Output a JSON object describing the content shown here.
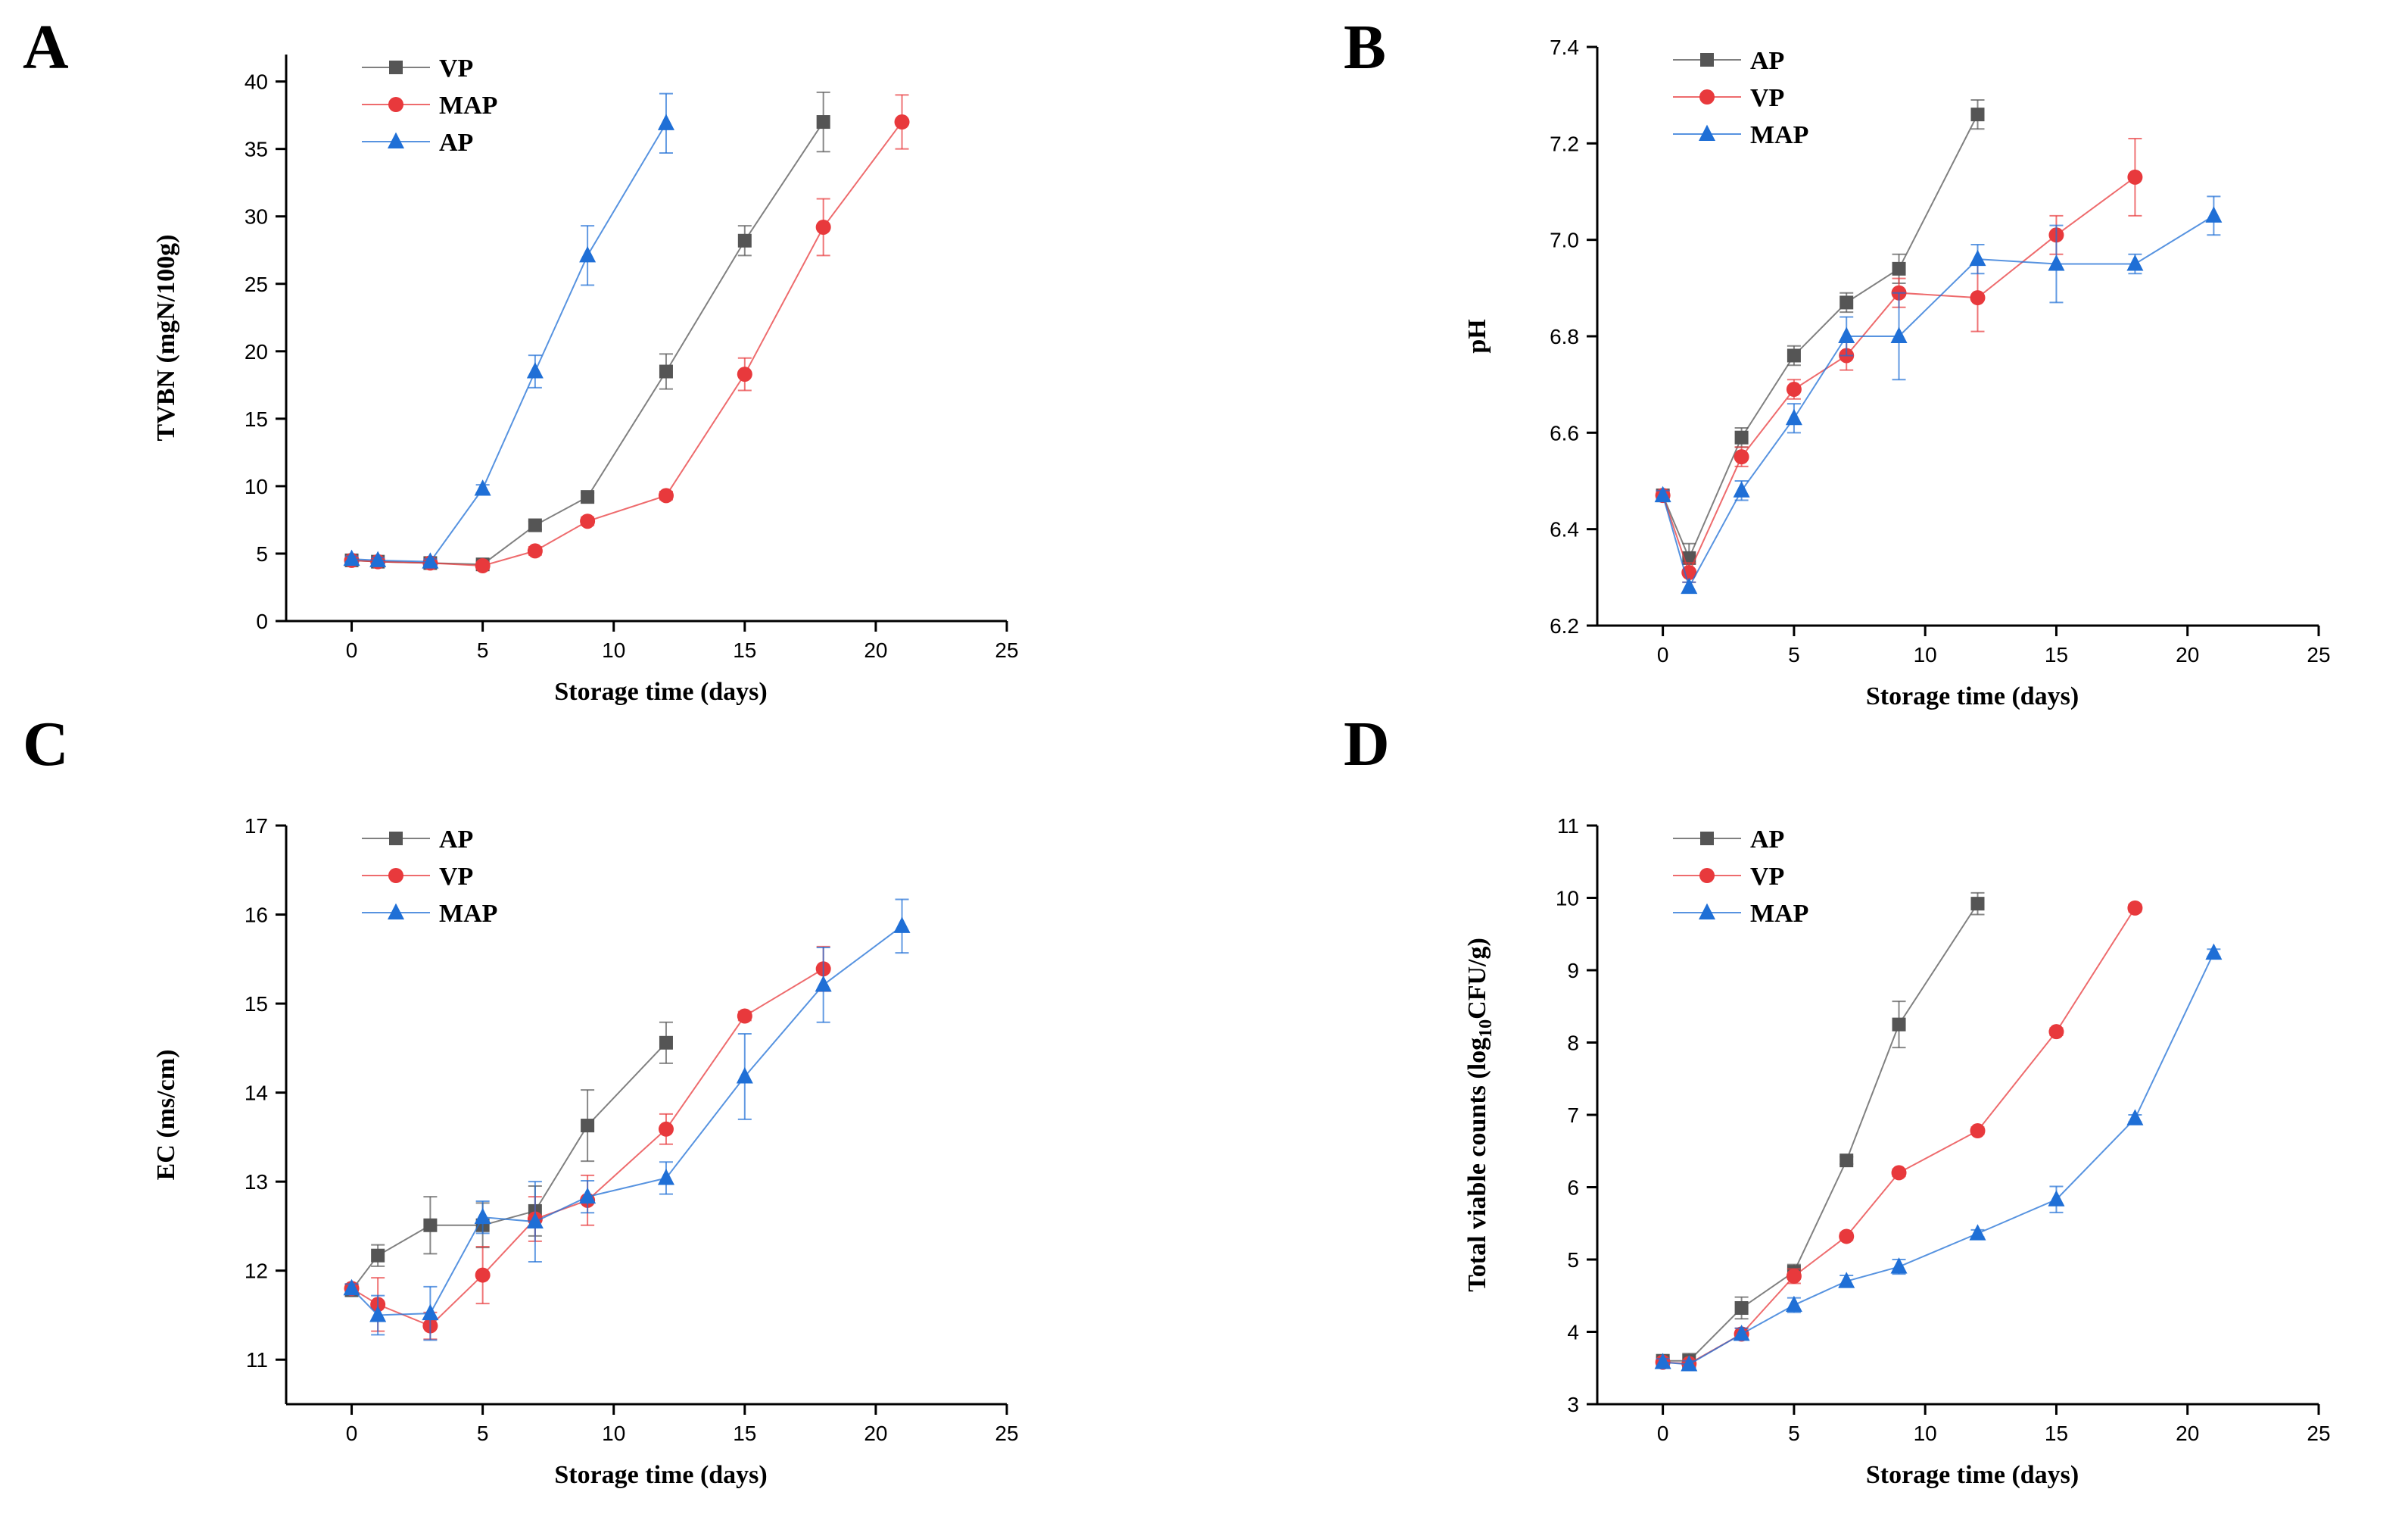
{
  "chart_data": [
    {
      "panel": "A",
      "type": "line",
      "title": "",
      "xlabel": "Storage time (days)",
      "ylabel": "TVBN (mgN/100g)",
      "xlim": [
        -2.5,
        25
      ],
      "ylim": [
        0,
        42
      ],
      "xticks": [
        0,
        5,
        10,
        15,
        20,
        25
      ],
      "yticks": [
        0,
        5,
        10,
        15,
        20,
        25,
        30,
        35,
        40
      ],
      "yprecision": 0,
      "legend_placement": "top-left",
      "series": [
        {
          "name": "VP",
          "color": "#555555",
          "marker": "square",
          "x": [
            0,
            1,
            3,
            5,
            7,
            9,
            12,
            15,
            18
          ],
          "y": [
            4.5,
            4.4,
            4.3,
            4.2,
            7.1,
            9.2,
            18.5,
            28.2,
            37.0
          ],
          "err": [
            0.2,
            0.2,
            0.2,
            0.2,
            0.3,
            0.3,
            1.3,
            1.1,
            2.2
          ]
        },
        {
          "name": "MAP",
          "color": "#e8393c",
          "marker": "circle",
          "x": [
            0,
            1,
            3,
            5,
            7,
            9,
            12,
            15,
            18,
            21
          ],
          "y": [
            4.5,
            4.4,
            4.3,
            4.1,
            5.2,
            7.4,
            9.3,
            18.3,
            29.2,
            37.0
          ],
          "err": [
            0.2,
            0.2,
            0.2,
            0.2,
            0.3,
            0.3,
            0.3,
            1.2,
            2.1,
            2.0
          ]
        },
        {
          "name": "AP",
          "color": "#1f6fd6",
          "marker": "triangle",
          "x": [
            0,
            1,
            3,
            5,
            7,
            9,
            12
          ],
          "y": [
            4.6,
            4.5,
            4.4,
            9.8,
            18.5,
            27.1,
            36.9
          ],
          "err": [
            0.2,
            0.2,
            0.2,
            0.3,
            1.2,
            2.2,
            2.2
          ]
        }
      ]
    },
    {
      "panel": "B",
      "type": "line",
      "title": "",
      "xlabel": "Storage time (days)",
      "ylabel": "pH",
      "xlim": [
        -2.5,
        25
      ],
      "ylim": [
        6.2,
        7.4
      ],
      "xticks": [
        0,
        5,
        10,
        15,
        20,
        25
      ],
      "yticks": [
        6.2,
        6.4,
        6.6,
        6.8,
        7.0,
        7.2,
        7.4
      ],
      "yprecision": 1,
      "legend_placement": "top-left",
      "series": [
        {
          "name": "AP",
          "color": "#555555",
          "marker": "square",
          "x": [
            0,
            1,
            3,
            5,
            7,
            9,
            12
          ],
          "y": [
            6.47,
            6.34,
            6.59,
            6.76,
            6.87,
            6.94,
            7.26
          ],
          "err": [
            0.01,
            0.03,
            0.02,
            0.02,
            0.02,
            0.03,
            0.03
          ]
        },
        {
          "name": "VP",
          "color": "#e8393c",
          "marker": "circle",
          "x": [
            0,
            1,
            3,
            5,
            7,
            9,
            12,
            15,
            18
          ],
          "y": [
            6.47,
            6.31,
            6.55,
            6.69,
            6.76,
            6.89,
            6.88,
            7.01,
            7.13
          ],
          "err": [
            0.01,
            0.02,
            0.02,
            0.02,
            0.03,
            0.03,
            0.07,
            0.04,
            0.08
          ]
        },
        {
          "name": "MAP",
          "color": "#1f6fd6",
          "marker": "triangle",
          "x": [
            0,
            1,
            3,
            5,
            7,
            9,
            12,
            15,
            18,
            21
          ],
          "y": [
            6.47,
            6.28,
            6.48,
            6.63,
            6.8,
            6.8,
            6.96,
            6.95,
            6.95,
            7.05
          ],
          "err": [
            0.01,
            0.01,
            0.02,
            0.03,
            0.04,
            0.09,
            0.03,
            0.08,
            0.02,
            0.04
          ]
        }
      ]
    },
    {
      "panel": "C",
      "type": "line",
      "title": "",
      "xlabel": "Storage time (days)",
      "ylabel": "EC (ms/cm)",
      "xlim": [
        -2.5,
        25
      ],
      "ylim": [
        10.5,
        17
      ],
      "xticks": [
        0,
        5,
        10,
        15,
        20,
        25
      ],
      "yticks": [
        11,
        12,
        13,
        14,
        15,
        16,
        17
      ],
      "yprecision": 0,
      "legend_placement": "top-left",
      "series": [
        {
          "name": "AP",
          "color": "#555555",
          "marker": "square",
          "x": [
            0,
            1,
            3,
            5,
            7,
            9,
            12
          ],
          "y": [
            11.78,
            12.17,
            12.51,
            12.51,
            12.67,
            13.63,
            14.56
          ],
          "err": [
            0.05,
            0.12,
            0.32,
            0.25,
            0.28,
            0.4,
            0.23
          ]
        },
        {
          "name": "VP",
          "color": "#e8393c",
          "marker": "circle",
          "x": [
            0,
            1,
            3,
            5,
            7,
            9,
            12,
            15,
            18
          ],
          "y": [
            11.8,
            11.62,
            11.38,
            11.95,
            12.58,
            12.79,
            13.59,
            14.86,
            15.39
          ],
          "err": [
            0.05,
            0.3,
            0.15,
            0.32,
            0.25,
            0.28,
            0.17,
            0.05,
            0.25
          ]
        },
        {
          "name": "MAP",
          "color": "#1f6fd6",
          "marker": "triangle",
          "x": [
            0,
            1,
            3,
            5,
            7,
            9,
            12,
            15,
            18,
            21
          ],
          "y": [
            11.8,
            11.5,
            11.52,
            12.6,
            12.55,
            12.83,
            13.04,
            14.18,
            15.21,
            15.87
          ],
          "err": [
            0.05,
            0.22,
            0.3,
            0.18,
            0.45,
            0.18,
            0.18,
            0.48,
            0.42,
            0.3
          ]
        }
      ]
    },
    {
      "panel": "D",
      "type": "line",
      "title": "",
      "xlabel": "Storage time (days)",
      "ylabel": "Total viable counts (log",
      "ylabel_sub": "10",
      "ylabel_tail": "CFU/g)",
      "xlim": [
        -2.5,
        25
      ],
      "ylim": [
        3,
        11
      ],
      "xticks": [
        0,
        5,
        10,
        15,
        20,
        25
      ],
      "yticks": [
        3,
        4,
        5,
        6,
        7,
        8,
        9,
        10,
        11
      ],
      "yprecision": 0,
      "legend_placement": "top-left",
      "series": [
        {
          "name": "AP",
          "color": "#555555",
          "marker": "square",
          "x": [
            0,
            1,
            3,
            5,
            7,
            9,
            12
          ],
          "y": [
            3.6,
            3.6,
            4.33,
            4.83,
            6.37,
            8.25,
            9.92
          ],
          "err": [
            0.05,
            0.1,
            0.15,
            0.1,
            0.05,
            0.32,
            0.15
          ]
        },
        {
          "name": "VP",
          "color": "#e8393c",
          "marker": "circle",
          "x": [
            0,
            1,
            3,
            5,
            7,
            9,
            12,
            15,
            18
          ],
          "y": [
            3.58,
            3.56,
            3.97,
            4.77,
            5.32,
            6.2,
            6.78,
            8.15,
            9.86
          ],
          "err": [
            0.05,
            0.05,
            0.08,
            0.1,
            0.05,
            0.05,
            0.05,
            0.05,
            0.05
          ]
        },
        {
          "name": "MAP",
          "color": "#1f6fd6",
          "marker": "triangle",
          "x": [
            0,
            1,
            3,
            5,
            7,
            9,
            12,
            15,
            18,
            21
          ],
          "y": [
            3.58,
            3.55,
            3.97,
            4.37,
            4.7,
            4.9,
            5.36,
            5.83,
            6.95,
            9.24
          ],
          "err": [
            0.05,
            0.05,
            0.08,
            0.1,
            0.08,
            0.1,
            0.05,
            0.18,
            0.05,
            0.05
          ]
        }
      ]
    }
  ]
}
